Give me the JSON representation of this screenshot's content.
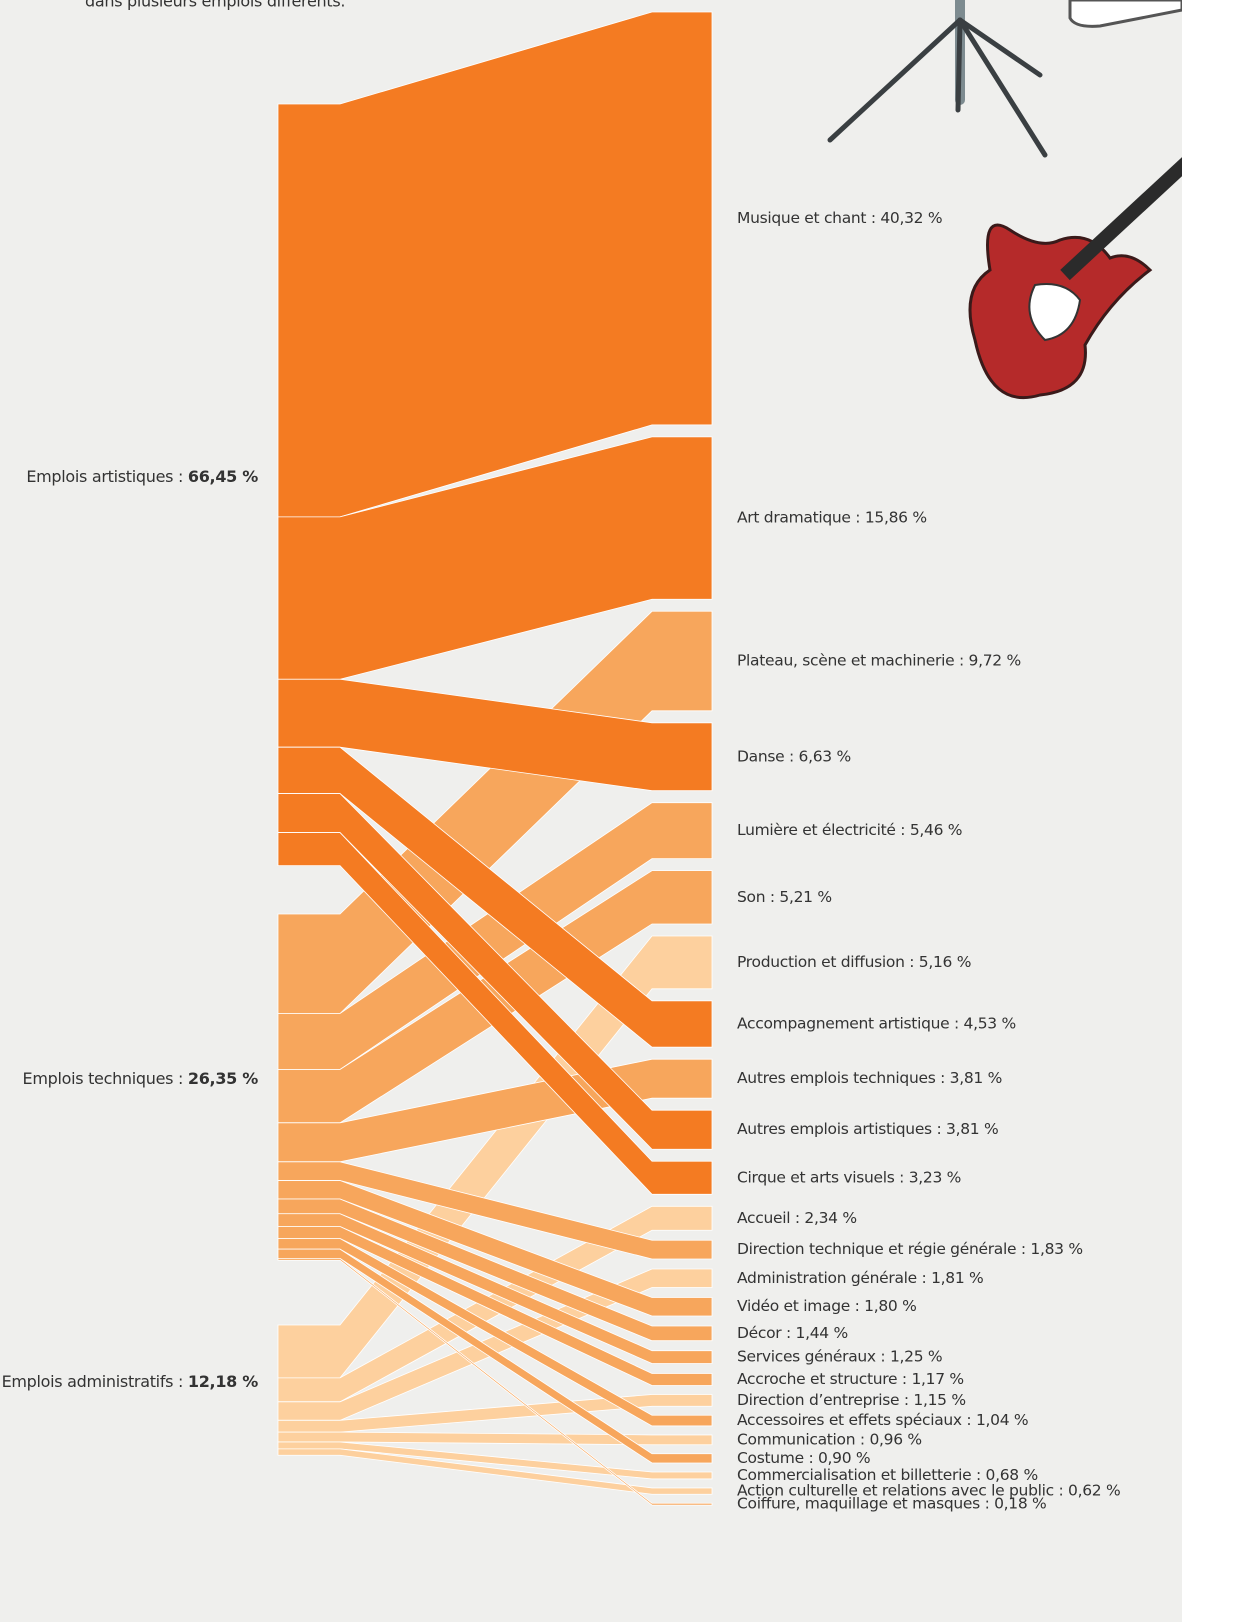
{
  "chart_data": {
    "type": "sankey",
    "intro": "dans plusieurs emplois différents.",
    "nodes": [
      {
        "name": "Emplois artistiques :",
        "value": 66.45,
        "value_label": "66,45 %",
        "color": "#f47b22"
      },
      {
        "name": "Emplois techniques :",
        "value": 26.35,
        "value_label": "26,35 %",
        "color": "#f7a65c"
      },
      {
        "name": "Emplois administratifs :",
        "value": 12.18,
        "value_label": "12,18 %",
        "color": "#fdd09e"
      }
    ],
    "links": [
      {
        "source": 0,
        "label": "Musique et chant : 40,32 %",
        "value": 40.32
      },
      {
        "source": 0,
        "label": "Art dramatique : 15,86 %",
        "value": 15.86
      },
      {
        "source": 1,
        "label": "Plateau, scène et machinerie : 9,72 %",
        "value": 9.72
      },
      {
        "source": 0,
        "label": "Danse : 6,63 %",
        "value": 6.63
      },
      {
        "source": 1,
        "label": "Lumière et électricité : 5,46 %",
        "value": 5.46
      },
      {
        "source": 1,
        "label": "Son : 5,21 %",
        "value": 5.21
      },
      {
        "source": 2,
        "label": "Production et diffusion : 5,16 %",
        "value": 5.16
      },
      {
        "source": 0,
        "label": "Accompagnement artistique : 4,53 %",
        "value": 4.53
      },
      {
        "source": 1,
        "label": "Autres emplois techniques : 3,81 %",
        "value": 3.81
      },
      {
        "source": 0,
        "label": "Autres emplois artistiques : 3,81 %",
        "value": 3.81
      },
      {
        "source": 0,
        "label": "Cirque et arts visuels : 3,23 %",
        "value": 3.23
      },
      {
        "source": 2,
        "label": "Accueil : 2,34 %",
        "value": 2.34
      },
      {
        "source": 1,
        "label": "Direction technique et régie générale : 1,83 %",
        "value": 1.83
      },
      {
        "source": 2,
        "label": "Administration générale : 1,81 %",
        "value": 1.81
      },
      {
        "source": 1,
        "label": "Vidéo et image : 1,80 %",
        "value": 1.8
      },
      {
        "source": 1,
        "label": "Décor : 1,44 %",
        "value": 1.44
      },
      {
        "source": 1,
        "label": "Services généraux : 1,25 %",
        "value": 1.25
      },
      {
        "source": 1,
        "label": "Accroche et structure : 1,17 %",
        "value": 1.17
      },
      {
        "source": 2,
        "label": "Direction d’entreprise : 1,15 %",
        "value": 1.15
      },
      {
        "source": 1,
        "label": "Accessoires et effets spéciaux : 1,04 %",
        "value": 1.04
      },
      {
        "source": 2,
        "label": "Communication : 0,96 %",
        "value": 0.96
      },
      {
        "source": 1,
        "label": "Costume : 0,90 %",
        "value": 0.9
      },
      {
        "source": 2,
        "label": "Commercialisation et billetterie : 0,68 %",
        "value": 0.68
      },
      {
        "source": 2,
        "label": "Action culturelle et relations avec le public : 0,62 %",
        "value": 0.62
      },
      {
        "source": 1,
        "label": "Coiffure, maquillage et masques : 0,18 %",
        "value": 0.18
      }
    ]
  }
}
